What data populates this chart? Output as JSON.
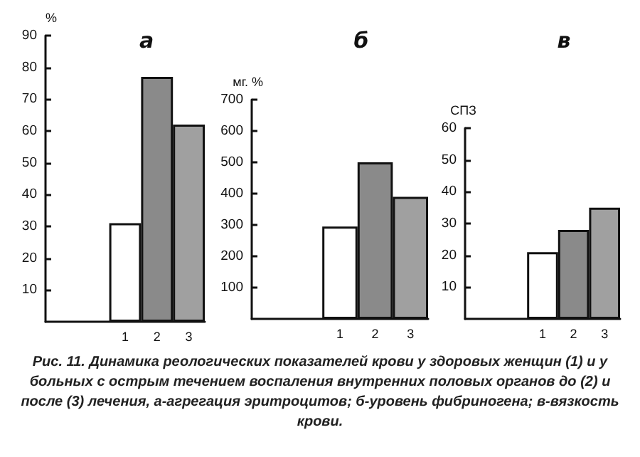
{
  "chart_data": [
    {
      "type": "bar",
      "title": "а",
      "ylabel": "%",
      "categories": [
        null,
        null,
        "1",
        "2",
        "3"
      ],
      "values": [
        null,
        null,
        31,
        77,
        62
      ],
      "colors": [
        "#ffffff",
        "#ffffff",
        "#ffffff",
        "#8a8a8a",
        "#a0a0a0"
      ],
      "ylim": [
        0,
        90
      ],
      "yticks": [
        10,
        20,
        30,
        40,
        50,
        60,
        70,
        80,
        90
      ],
      "grid": false,
      "annotations": [
        "Рис. 11. Динамика реологических показателей крови у здоровых женщин (1) и у больных с острым течением воспаления внутренних половых органов до (2) и после (3) лечения, а-агрегация эритроцитов; б-уровень фибриногена; в-вязкость крови."
      ]
    },
    {
      "type": "bar",
      "title": "б",
      "ylabel": "мг. %",
      "categories": [
        null,
        null,
        "1",
        "2",
        "3"
      ],
      "values": [
        null,
        null,
        295,
        500,
        390
      ],
      "colors": [
        "#ffffff",
        "#ffffff",
        "#ffffff",
        "#8a8a8a",
        "#a0a0a0"
      ],
      "ylim": [
        0,
        700
      ],
      "yticks": [
        100,
        200,
        300,
        400,
        500,
        600,
        700
      ],
      "grid": false
    },
    {
      "type": "bar",
      "title": "в",
      "ylabel": "СПЗ",
      "categories": [
        null,
        null,
        "1",
        "2",
        "3"
      ],
      "values": [
        null,
        null,
        21,
        28,
        35
      ],
      "colors": [
        "#ffffff",
        "#ffffff",
        "#ffffff",
        "#8a8a8a",
        "#a0a0a0"
      ],
      "ylim": [
        0,
        60
      ],
      "yticks": [
        10,
        20,
        30,
        40,
        50,
        60
      ],
      "grid": false
    }
  ]
}
